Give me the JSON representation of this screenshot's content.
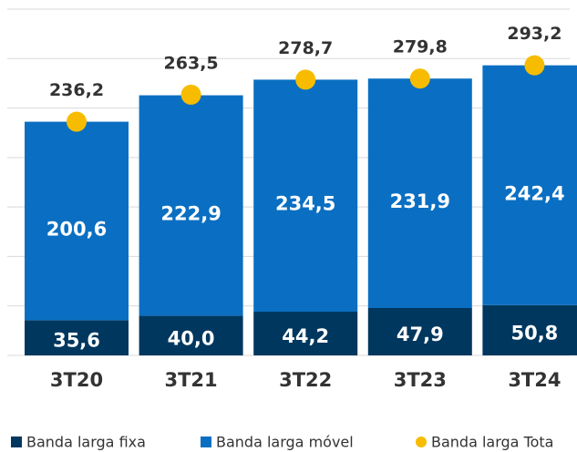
{
  "chart_data": {
    "type": "stacked_bar",
    "categories": [
      "3T20",
      "3T21",
      "3T22",
      "3T23",
      "3T24"
    ],
    "series": [
      {
        "name": "Banda larga fixa",
        "color": "#00375f",
        "values": [
          35.6,
          40.0,
          44.2,
          47.9,
          50.8
        ],
        "value_labels": [
          "35,6",
          "40,0",
          "44,2",
          "47,9",
          "50,8"
        ]
      },
      {
        "name": "Banda larga móvel",
        "color": "#0a6fc2",
        "values": [
          200.6,
          222.9,
          234.5,
          231.9,
          242.4
        ],
        "value_labels": [
          "200,6",
          "222,9",
          "234,5",
          "231,9",
          "242,4"
        ]
      },
      {
        "name": "Banda larga Tota",
        "color": "#f7bc00",
        "type": "dot",
        "values": [
          236.2,
          263.5,
          278.7,
          279.8,
          293.2
        ],
        "value_labels": [
          "236,2",
          "263,5",
          "278,7",
          "279,8",
          "293,2"
        ]
      }
    ],
    "ylim": [
      0,
      350
    ],
    "yticks": [
      0,
      50,
      100,
      150,
      200,
      250,
      300,
      350
    ],
    "grid": true,
    "legend": "bottom"
  }
}
